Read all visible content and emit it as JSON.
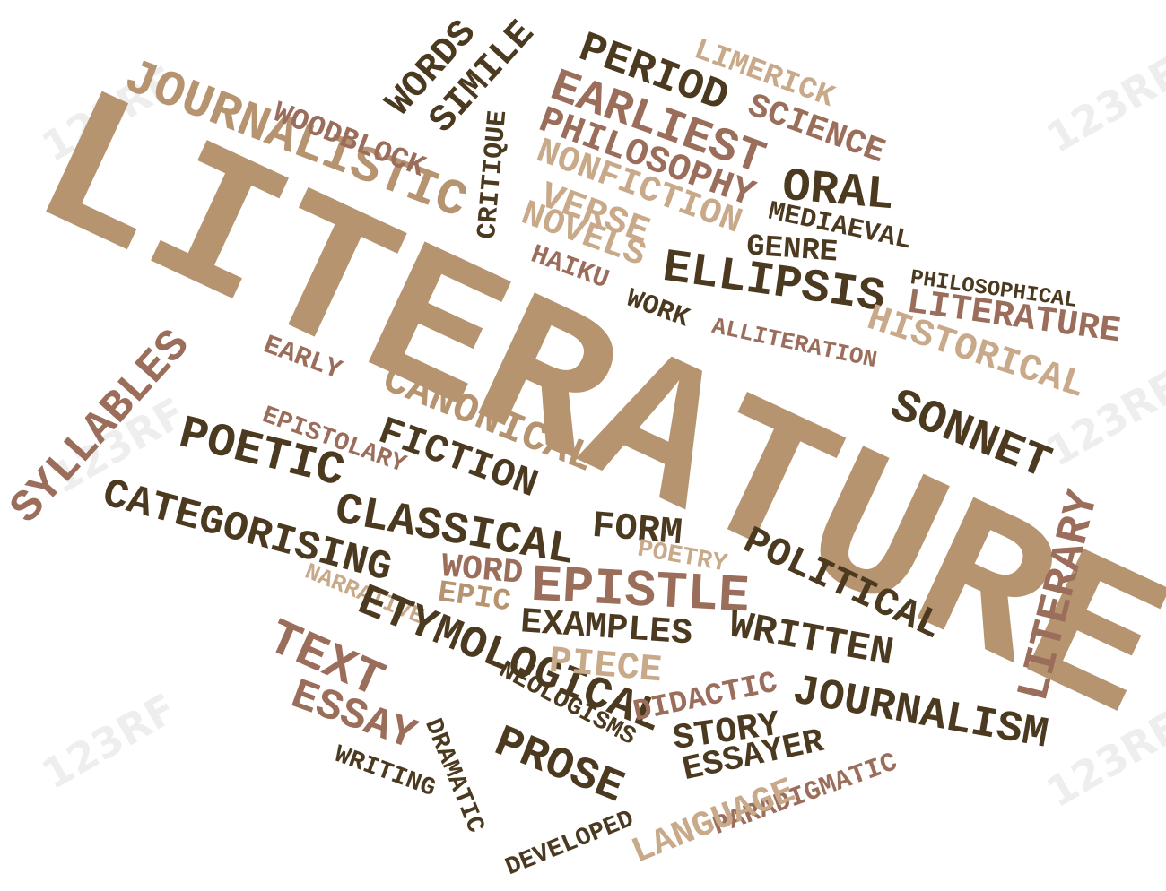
{
  "watermark": "123RF",
  "words": {
    "literature_main": "LITERATURE",
    "journalistic": "JOURNALISTIC",
    "woodblock": "WOODBLOCK",
    "words": "WORDS",
    "simile": "SIMILE",
    "critique": "CRITIQUE",
    "period": "PERIOD",
    "earliest": "EARLIEST",
    "philosophy": "PHILOSOPHY",
    "nonfiction": "NONFICTION",
    "verse": "VERSE",
    "novels": "NOVELS",
    "haiku": "HAIKU",
    "work": "WORK",
    "limerick": "LIMERICK",
    "science": "SCIENCE",
    "oral": "ORAL",
    "mediaeval": "MEDIAEVAL",
    "genre": "GENRE",
    "ellipsis": "ELLIPSIS",
    "philosophical": "PHILOSOPHICAL",
    "literature_small": "LITERATURE",
    "historical": "HISTORICAL",
    "alliteration": "ALLITERATION",
    "sonnet": "SONNET",
    "literary": "LITERARY",
    "syllables": "SYLLABLES",
    "early": "EARLY",
    "canonical": "CANONICAL",
    "epistolary": "EPISTOLARY",
    "fiction": "FICTION",
    "poetic": "POETIC",
    "categorising": "CATEGORISING",
    "classical": "CLASSICAL",
    "form": "FORM",
    "poetry": "POETRY",
    "political": "POLITICAL",
    "word": "WORD",
    "narrative": "NARRATIVE",
    "epic": "EPIC",
    "epistle": "EPISTLE",
    "examples": "EXAMPLES",
    "written": "WRITTEN",
    "etymological": "ETYMOLOGICAL",
    "piece": "PIECE",
    "text": "TEXT",
    "neologisms": "NEOLOGISMS",
    "didactic": "DIDACTIC",
    "journalism": "JOURNALISM",
    "essay": "ESSAY",
    "dramatic": "DRAMATIC",
    "story": "STORY",
    "essayer": "ESSAYER",
    "prose": "PROSE",
    "writing": "WRITING",
    "paradigmatic": "PARADIGMATIC",
    "language": "LANGUAGE",
    "developed": "DEVELOPED"
  }
}
